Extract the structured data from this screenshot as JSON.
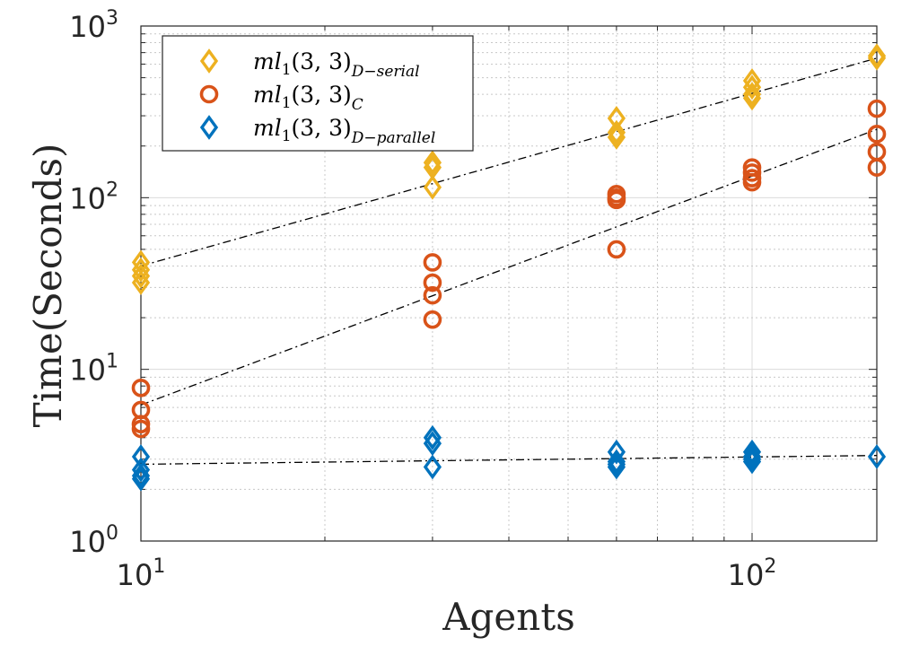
{
  "chart_data": {
    "type": "scatter",
    "title": "",
    "xlabel": "Agents",
    "ylabel": "Time(Seconds)",
    "xscale": "log",
    "yscale": "log",
    "xlim": [
      10,
      160
    ],
    "ylim": [
      1,
      1000
    ],
    "x_ticks": [
      {
        "value": 10,
        "base": "10",
        "exp": "1"
      },
      {
        "value": 100,
        "base": "10",
        "exp": "2"
      }
    ],
    "y_ticks": [
      {
        "value": 1,
        "base": "10",
        "exp": "0"
      },
      {
        "value": 10,
        "base": "10",
        "exp": "1"
      },
      {
        "value": 100,
        "base": "10",
        "exp": "2"
      },
      {
        "value": 1000,
        "base": "10",
        "exp": "3"
      }
    ],
    "grid": true,
    "legend_position": "top-left",
    "series": [
      {
        "name_base": "ml",
        "name_sub1": "1",
        "name_args": "(3, 3)",
        "name_sub2": "D−serial",
        "marker": "diamond",
        "color": "#EDB120",
        "points": [
          [
            10,
            42
          ],
          [
            10,
            38
          ],
          [
            10,
            35
          ],
          [
            10,
            32
          ],
          [
            30,
            160
          ],
          [
            30,
            150
          ],
          [
            30,
            115
          ],
          [
            60,
            290
          ],
          [
            60,
            240
          ],
          [
            60,
            225
          ],
          [
            100,
            480
          ],
          [
            100,
            440
          ],
          [
            100,
            400
          ],
          [
            100,
            380
          ],
          [
            160,
            670
          ],
          [
            160,
            650
          ]
        ],
        "fit": [
          [
            10,
            40
          ],
          [
            160,
            650
          ]
        ]
      },
      {
        "name_base": "ml",
        "name_sub1": "1",
        "name_args": "(3, 3)",
        "name_sub2": "C",
        "marker": "circle",
        "color": "#D95319",
        "points": [
          [
            10,
            7.8
          ],
          [
            10,
            5.8
          ],
          [
            10,
            4.8
          ],
          [
            10,
            4.5
          ],
          [
            30,
            42
          ],
          [
            30,
            32
          ],
          [
            30,
            27
          ],
          [
            30,
            19.5
          ],
          [
            60,
            105
          ],
          [
            60,
            100
          ],
          [
            60,
            97
          ],
          [
            60,
            50
          ],
          [
            100,
            150
          ],
          [
            100,
            140
          ],
          [
            100,
            130
          ],
          [
            100,
            123
          ],
          [
            160,
            330
          ],
          [
            160,
            235
          ],
          [
            160,
            185
          ],
          [
            160,
            150
          ]
        ],
        "fit": [
          [
            10,
            6.2
          ],
          [
            160,
            250
          ]
        ]
      },
      {
        "name_base": "ml",
        "name_sub1": "1",
        "name_args": "(3, 3)",
        "name_sub2": "D−parallel",
        "marker": "diamond",
        "color": "#0072BD",
        "points": [
          [
            10,
            3.1
          ],
          [
            10,
            2.6
          ],
          [
            10,
            2.4
          ],
          [
            10,
            2.3
          ],
          [
            30,
            4.0
          ],
          [
            30,
            3.7
          ],
          [
            30,
            2.7
          ],
          [
            60,
            3.3
          ],
          [
            60,
            2.9
          ],
          [
            60,
            2.8
          ],
          [
            60,
            2.7
          ],
          [
            100,
            3.3
          ],
          [
            100,
            3.1
          ],
          [
            100,
            3.0
          ],
          [
            100,
            2.9
          ],
          [
            160,
            3.1
          ]
        ],
        "fit": [
          [
            10,
            2.8
          ],
          [
            160,
            3.15
          ]
        ]
      }
    ]
  }
}
